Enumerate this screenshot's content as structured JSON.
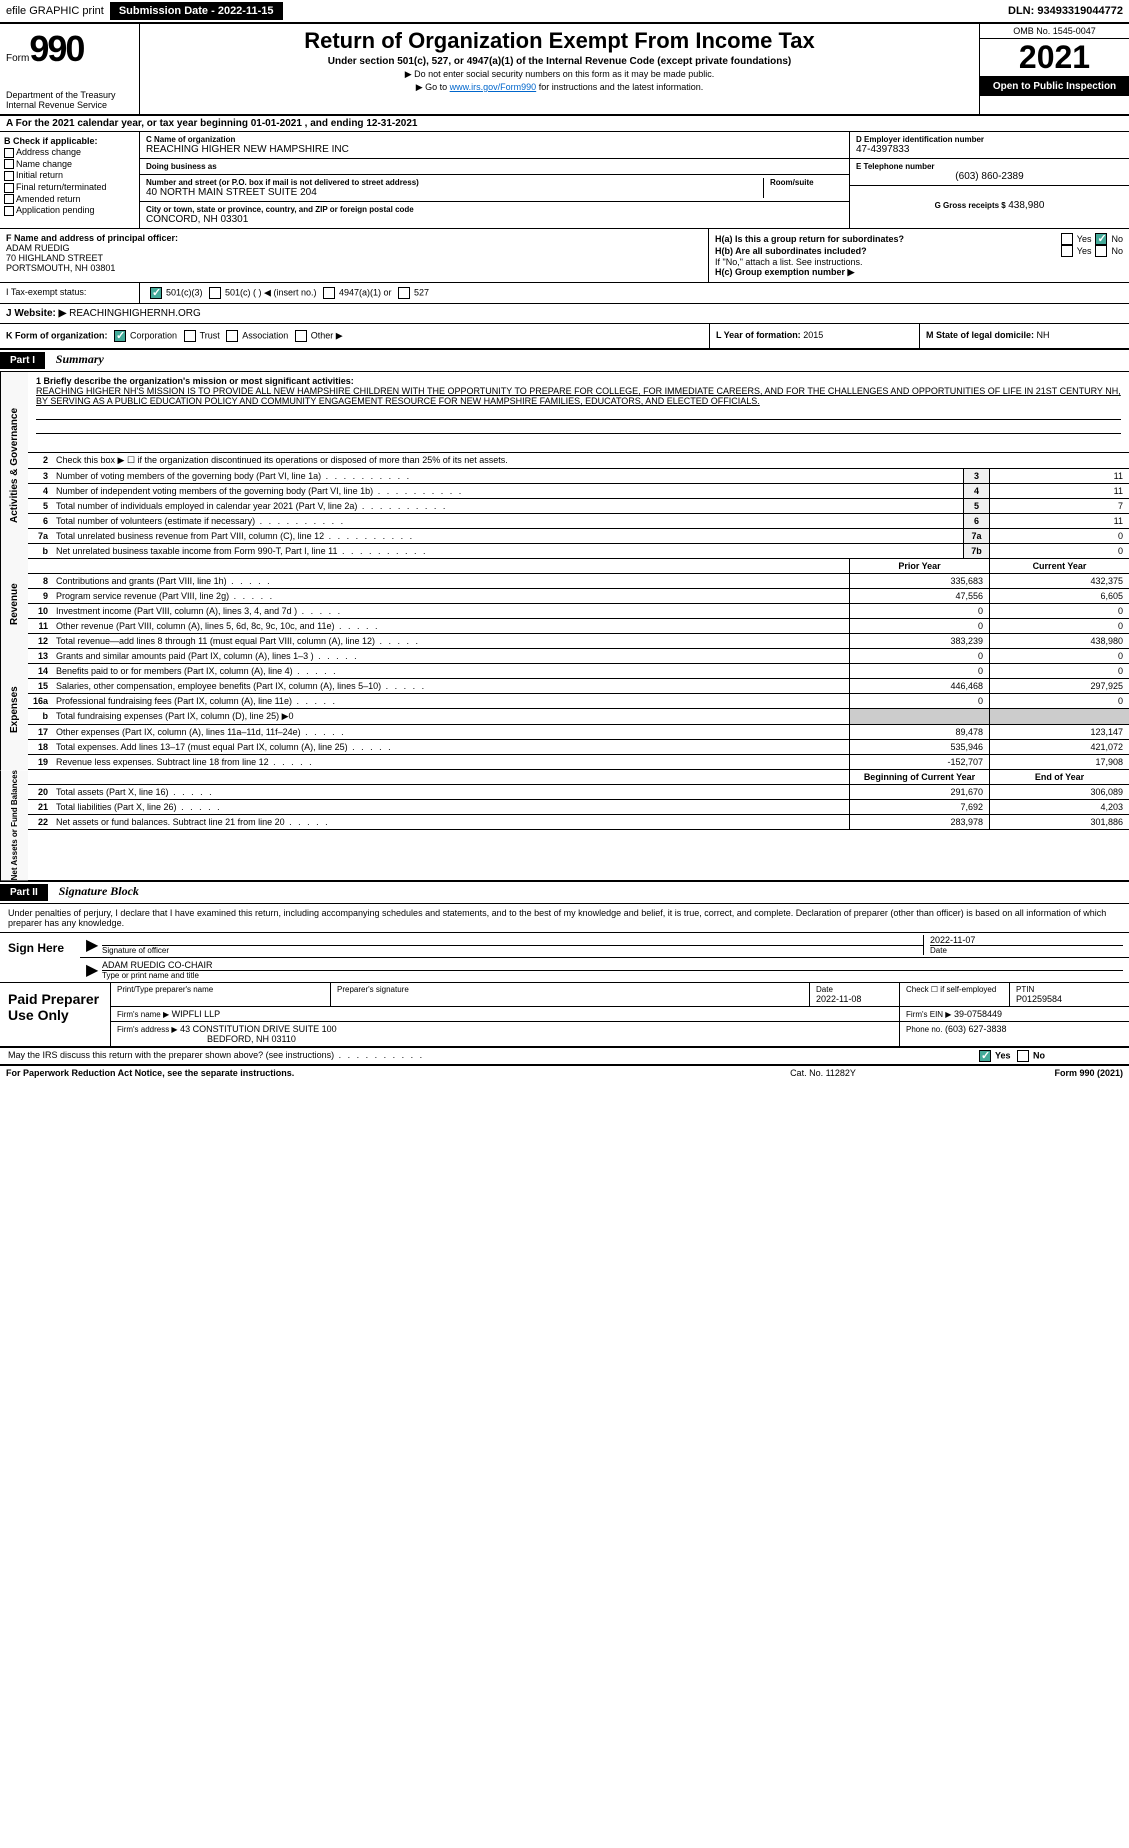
{
  "topbar": {
    "efile": "efile GRAPHIC print",
    "submission_label": "Submission Date - 2022-11-15",
    "dln": "DLN: 93493319044772"
  },
  "header": {
    "form_prefix": "Form",
    "form_number": "990",
    "dept": "Department of the Treasury",
    "irs": "Internal Revenue Service",
    "title": "Return of Organization Exempt From Income Tax",
    "subtitle": "Under section 501(c), 527, or 4947(a)(1) of the Internal Revenue Code (except private foundations)",
    "note1": "▶ Do not enter social security numbers on this form as it may be made public.",
    "note2_prefix": "▶ Go to ",
    "note2_link": "www.irs.gov/Form990",
    "note2_suffix": " for instructions and the latest information.",
    "omb": "OMB No. 1545-0047",
    "tax_year": "2021",
    "open_pub": "Open to Public Inspection"
  },
  "section_a": "A For the 2021 calendar year, or tax year beginning 01-01-2021    , and ending 12-31-2021",
  "col_b": {
    "header": "B Check if applicable:",
    "items": [
      "Address change",
      "Name change",
      "Initial return",
      "Final return/terminated",
      "Amended return",
      "Application pending"
    ]
  },
  "col_c": {
    "name_label": "C Name of organization",
    "name": "REACHING HIGHER NEW HAMPSHIRE INC",
    "dba_label": "Doing business as",
    "dba": "",
    "street_label": "Number and street (or P.O. box if mail is not delivered to street address)",
    "room_label": "Room/suite",
    "street": "40 NORTH MAIN STREET SUITE 204",
    "city_label": "City or town, state or province, country, and ZIP or foreign postal code",
    "city": "CONCORD, NH  03301"
  },
  "col_d": {
    "ein_label": "D Employer identification number",
    "ein": "47-4397833",
    "tel_label": "E Telephone number",
    "tel": "(603) 860-2389",
    "gross_label": "G Gross receipts $",
    "gross": "438,980"
  },
  "officer": {
    "label": "F  Name and address of principal officer:",
    "name": "ADAM RUEDIG",
    "street": "70 HIGHLAND STREET",
    "city": "PORTSMOUTH, NH  03801",
    "h_a": "H(a)  Is this a group return for subordinates?",
    "h_b": "H(b)  Are all subordinates included?",
    "h_b_note": "If \"No,\" attach a list. See instructions.",
    "h_c": "H(c)  Group exemption number ▶",
    "yes": "Yes",
    "no": "No"
  },
  "exempt": {
    "i_label": "I    Tax-exempt status:",
    "opt1": "501(c)(3)",
    "opt2": "501(c) (   ) ◀ (insert no.)",
    "opt3": "4947(a)(1) or",
    "opt4": "527"
  },
  "website": {
    "label": "J    Website: ▶",
    "value": "REACHINGHIGHERNH.ORG"
  },
  "k_org": {
    "label": "K Form of organization:",
    "opts": [
      "Corporation",
      "Trust",
      "Association",
      "Other ▶"
    ],
    "l_label": "L Year of formation:",
    "l_val": "2015",
    "m_label": "M State of legal domicile:",
    "m_val": "NH"
  },
  "part1": {
    "hdr": "Part I",
    "title": "Summary",
    "mission_label": "1  Briefly describe the organization's mission or most significant activities:",
    "mission": "REACHING HIGHER NH'S MISSION IS TO PROVIDE ALL NEW HAMPSHIRE CHILDREN WITH THE OPPORTUNITY TO PREPARE FOR COLLEGE, FOR IMMEDIATE CAREERS, AND FOR THE CHALLENGES AND OPPORTUNITIES OF LIFE IN 21ST CENTURY NH, BY SERVING AS A PUBLIC EDUCATION POLICY AND COMMUNITY ENGAGEMENT RESOURCE FOR NEW HAMPSHIRE FAMILIES, EDUCATORS, AND ELECTED OFFICIALS.",
    "line2": "Check this box ▶ ☐  if the organization discontinued its operations or disposed of more than 25% of its net assets.",
    "gov_tab": "Activities & Governance",
    "rev_tab": "Revenue",
    "exp_tab": "Expenses",
    "net_tab": "Net Assets or Fund Balances",
    "lines_gov": [
      {
        "n": "3",
        "t": "Number of voting members of the governing body (Part VI, line 1a)",
        "b": "3",
        "v": "11"
      },
      {
        "n": "4",
        "t": "Number of independent voting members of the governing body (Part VI, line 1b)",
        "b": "4",
        "v": "11"
      },
      {
        "n": "5",
        "t": "Total number of individuals employed in calendar year 2021 (Part V, line 2a)",
        "b": "5",
        "v": "7"
      },
      {
        "n": "6",
        "t": "Total number of volunteers (estimate if necessary)",
        "b": "6",
        "v": "11"
      },
      {
        "n": "7a",
        "t": "Total unrelated business revenue from Part VIII, column (C), line 12",
        "b": "7a",
        "v": "0"
      },
      {
        "n": "b",
        "t": "Net unrelated business taxable income from Form 990-T, Part I, line 11",
        "b": "7b",
        "v": "0"
      }
    ],
    "prior_hdr": "Prior Year",
    "current_hdr": "Current Year",
    "lines_rev": [
      {
        "n": "8",
        "t": "Contributions and grants (Part VIII, line 1h)",
        "p": "335,683",
        "c": "432,375"
      },
      {
        "n": "9",
        "t": "Program service revenue (Part VIII, line 2g)",
        "p": "47,556",
        "c": "6,605"
      },
      {
        "n": "10",
        "t": "Investment income (Part VIII, column (A), lines 3, 4, and 7d )",
        "p": "0",
        "c": "0"
      },
      {
        "n": "11",
        "t": "Other revenue (Part VIII, column (A), lines 5, 6d, 8c, 9c, 10c, and 11e)",
        "p": "0",
        "c": "0"
      },
      {
        "n": "12",
        "t": "Total revenue—add lines 8 through 11 (must equal Part VIII, column (A), line 12)",
        "p": "383,239",
        "c": "438,980"
      }
    ],
    "lines_exp": [
      {
        "n": "13",
        "t": "Grants and similar amounts paid (Part IX, column (A), lines 1–3 )",
        "p": "0",
        "c": "0"
      },
      {
        "n": "14",
        "t": "Benefits paid to or for members (Part IX, column (A), line 4)",
        "p": "0",
        "c": "0"
      },
      {
        "n": "15",
        "t": "Salaries, other compensation, employee benefits (Part IX, column (A), lines 5–10)",
        "p": "446,468",
        "c": "297,925"
      },
      {
        "n": "16a",
        "t": "Professional fundraising fees (Part IX, column (A), line 11e)",
        "p": "0",
        "c": "0"
      },
      {
        "n": "b",
        "t": "Total fundraising expenses (Part IX, column (D), line 25) ▶0",
        "p": "",
        "c": "",
        "gray": true
      },
      {
        "n": "17",
        "t": "Other expenses (Part IX, column (A), lines 11a–11d, 11f–24e)",
        "p": "89,478",
        "c": "123,147"
      },
      {
        "n": "18",
        "t": "Total expenses. Add lines 13–17 (must equal Part IX, column (A), line 25)",
        "p": "535,946",
        "c": "421,072"
      },
      {
        "n": "19",
        "t": "Revenue less expenses. Subtract line 18 from line 12",
        "p": "-152,707",
        "c": "17,908"
      }
    ],
    "beg_hdr": "Beginning of Current Year",
    "end_hdr": "End of Year",
    "lines_net": [
      {
        "n": "20",
        "t": "Total assets (Part X, line 16)",
        "p": "291,670",
        "c": "306,089"
      },
      {
        "n": "21",
        "t": "Total liabilities (Part X, line 26)",
        "p": "7,692",
        "c": "4,203"
      },
      {
        "n": "22",
        "t": "Net assets or fund balances. Subtract line 21 from line 20",
        "p": "283,978",
        "c": "301,886"
      }
    ]
  },
  "part2": {
    "hdr": "Part II",
    "title": "Signature Block",
    "intro": "Under penalties of perjury, I declare that I have examined this return, including accompanying schedules and statements, and to the best of my knowledge and belief, it is true, correct, and complete. Declaration of preparer (other than officer) is based on all information of which preparer has any knowledge.",
    "sign_here": "Sign Here",
    "sig_officer": "Signature of officer",
    "sig_date": "2022-11-07",
    "date_lbl": "Date",
    "name_title": "ADAM RUEDIG  CO-CHAIR",
    "type_lbl": "Type or print name and title",
    "paid_prep": "Paid Preparer Use Only",
    "prep_name_lbl": "Print/Type preparer's name",
    "prep_sig_lbl": "Preparer's signature",
    "prep_date_lbl": "Date",
    "prep_date": "2022-11-08",
    "self_emp": "Check ☐ if self-employed",
    "ptin_lbl": "PTIN",
    "ptin": "P01259584",
    "firm_name_lbl": "Firm's name    ▶",
    "firm_name": "WIPFLI LLP",
    "firm_ein_lbl": "Firm's EIN ▶",
    "firm_ein": "39-0758449",
    "firm_addr_lbl": "Firm's address ▶",
    "firm_addr1": "43 CONSTITUTION DRIVE SUITE 100",
    "firm_addr2": "BEDFORD, NH  03110",
    "phone_lbl": "Phone no.",
    "phone": "(603) 627-3838",
    "discuss": "May the IRS discuss this return with the preparer shown above? (see instructions)"
  },
  "footer": {
    "left": "For Paperwork Reduction Act Notice, see the separate instructions.",
    "mid": "Cat. No. 11282Y",
    "right": "Form 990 (2021)"
  },
  "colors": {
    "bg": "#ffffff",
    "fg": "#000000",
    "link": "#0066cc",
    "check_green": "#44aa99",
    "gray_fill": "#cccccc",
    "box_gray": "#f0f0f0"
  }
}
